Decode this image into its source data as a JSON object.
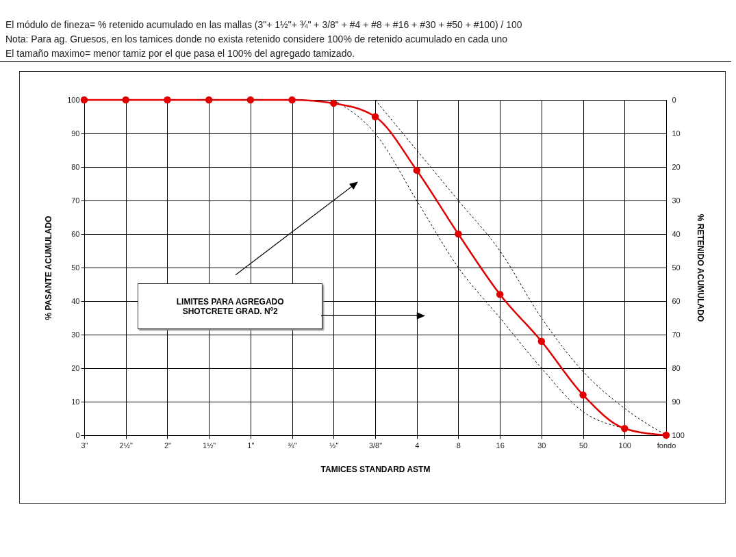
{
  "chart_data": {
    "type": "line",
    "annotations": [
      "El módulo de fineza= % retenido acumulado en las mallas (3\"+ 1½\"+ ¾\" + 3/8\" + #4 + #8 + #16 + #30 + #50 + #100) / 100",
      "Nota: Para ag. Gruesos, en los tamices donde no exista retenido considere 100% de retenido acumulado en cada uno",
      "El tamaño maximo= menor tamiz por el que pasa el 100% del agregado tamizado.",
      "LIMITES PARA AGREGADO\nSHOTCRETE GRAD. Nº2"
    ],
    "xlabel": "TAMICES STANDARD ASTM",
    "ylabel": "% PASANTE ACUMULADO",
    "y2label": "% RETENIDO ACUMULADO",
    "categories": [
      "3\"",
      "2½\"",
      "2\"",
      "1½\"",
      "1\"",
      "¾\"",
      "½\"",
      "3/8\"",
      "4",
      "8",
      "16",
      "30",
      "50",
      "100",
      "fondo"
    ],
    "series": [
      {
        "color": "#000000",
        "line_style": "dashed",
        "marker": "none",
        "values": [
          null,
          null,
          null,
          null,
          null,
          null,
          null,
          100,
          85,
          70,
          55,
          35,
          19,
          8,
          0
        ]
      },
      {
        "color": "#000000",
        "line_style": "dashed",
        "marker": "none",
        "values": [
          null,
          null,
          null,
          null,
          null,
          null,
          100,
          90,
          70,
          50,
          35,
          20,
          7,
          2,
          0
        ]
      },
      {
        "color": "#e00000",
        "line_style": "solid",
        "marker": "circle",
        "values": [
          100,
          100,
          100,
          100,
          100,
          100,
          99,
          95,
          79,
          60,
          42,
          28,
          12,
          2,
          0
        ]
      }
    ],
    "ylim": [
      0,
      100
    ],
    "yticks": [
      0,
      10,
      20,
      30,
      40,
      50,
      60,
      70,
      80,
      90,
      100
    ],
    "y2lim": [
      100,
      0
    ],
    "y2ticks": [
      0,
      10,
      20,
      30,
      40,
      50,
      60,
      70,
      80,
      90,
      100
    ],
    "grid": true
  }
}
